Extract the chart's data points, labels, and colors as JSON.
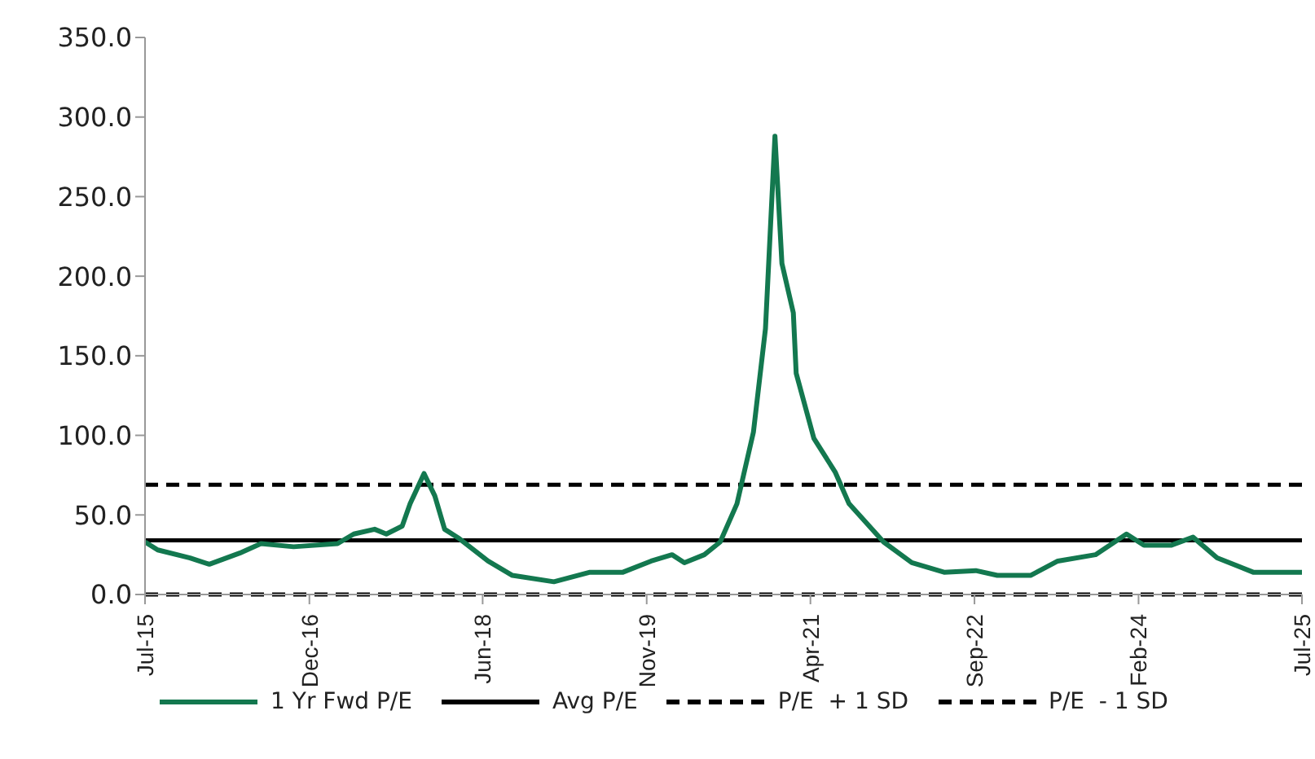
{
  "chart_data": {
    "type": "line",
    "x": [
      "2015-07-01",
      "2015-08-10",
      "2015-11-20",
      "2016-01-20",
      "2016-04-25",
      "2016-07-01",
      "2016-10-12",
      "2017-02-28",
      "2017-04-20",
      "2017-06-25",
      "2017-08-01",
      "2017-09-20",
      "2017-10-15",
      "2017-11-28",
      "2018-01-01",
      "2018-02-01",
      "2018-03-20",
      "2018-06-18",
      "2018-09-03",
      "2019-01-12",
      "2019-05-06",
      "2019-08-18",
      "2019-11-15",
      "2020-01-20",
      "2020-02-28",
      "2020-05-01",
      "2020-06-20",
      "2020-08-12",
      "2020-10-03",
      "2020-11-10",
      "2020-12-10",
      "2021-01-01",
      "2021-02-06",
      "2021-02-15",
      "2021-04-12",
      "2021-06-18",
      "2021-08-01",
      "2021-11-18",
      "2022-02-15",
      "2022-05-28",
      "2022-09-05",
      "2022-11-12",
      "2023-02-25",
      "2023-05-22",
      "2023-09-18",
      "2023-12-25",
      "2024-02-18",
      "2024-05-15",
      "2024-07-22",
      "2024-10-06",
      "2025-01-28",
      "2025-07-01"
    ],
    "series": [
      {
        "name": "1 Yr Fwd P/E",
        "color": "#13784f",
        "values": [
          33,
          28,
          23,
          19,
          26,
          32,
          30,
          32,
          38,
          41,
          38,
          43,
          57,
          76,
          62,
          41,
          35,
          21,
          12,
          8,
          14,
          14,
          21,
          25,
          20,
          25,
          33,
          57,
          102,
          167,
          288,
          208,
          177,
          139,
          98,
          77,
          57,
          33,
          20,
          14,
          15,
          12,
          12,
          21,
          25,
          38,
          31,
          31,
          36,
          23,
          14,
          14
        ]
      }
    ],
    "ref_lines": [
      {
        "axis": "y",
        "value": 34,
        "label": "Avg P/E",
        "color": "#000000",
        "line_style": "solid"
      },
      {
        "axis": "y",
        "value": 69,
        "label": "P/E  + 1 SD",
        "color": "#000000",
        "line_style": "dashed"
      },
      {
        "axis": "y",
        "value": 0,
        "label": "P/E  - 1 SD",
        "color": "#000000",
        "line_style": "dashed"
      }
    ],
    "xlim": [
      "2015-07-01",
      "2025-07-01"
    ],
    "xticks": [
      {
        "value": "2015-07-01",
        "label": "Jul-15"
      },
      {
        "value": "2016-12-01",
        "label": "Dec-16"
      },
      {
        "value": "2018-06-01",
        "label": "Jun-18"
      },
      {
        "value": "2019-11-01",
        "label": "Nov-19"
      },
      {
        "value": "2021-04-01",
        "label": "Apr-21"
      },
      {
        "value": "2022-09-01",
        "label": "Sep-22"
      },
      {
        "value": "2024-02-01",
        "label": "Feb-24"
      },
      {
        "value": "2025-07-01",
        "label": "Jul-25"
      }
    ],
    "ylim": [
      0,
      350
    ],
    "yticks": [
      {
        "value": 0,
        "label": "0.0"
      },
      {
        "value": 50,
        "label": "50.0"
      },
      {
        "value": 100,
        "label": "100.0"
      },
      {
        "value": 150,
        "label": "150.0"
      },
      {
        "value": 200,
        "label": "200.0"
      },
      {
        "value": 250,
        "label": "250.0"
      },
      {
        "value": 300,
        "label": "300.0"
      },
      {
        "value": 350,
        "label": "350.0"
      }
    ],
    "grid": false,
    "legend": "bottom",
    "marker": "none",
    "line_style": "solid"
  }
}
